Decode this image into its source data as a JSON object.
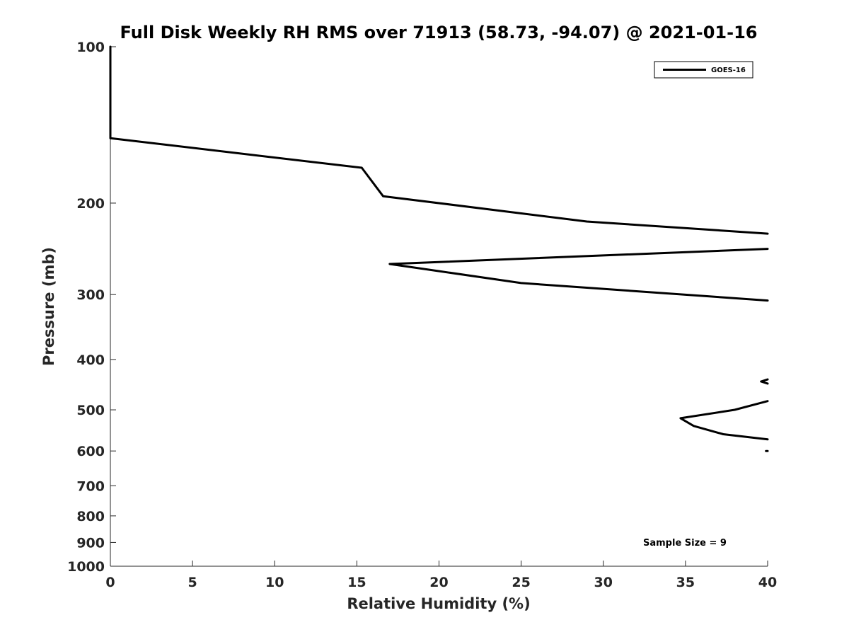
{
  "chart_data": {
    "type": "line",
    "title": "Full Disk Weekly RH RMS over 71913 (58.73, -94.07) @ 2021-01-16",
    "xlabel": "Relative Humidity (%)",
    "ylabel": "Pressure (mb)",
    "xlim": [
      0,
      40
    ],
    "ylim": [
      100,
      1000
    ],
    "y_scale": "log",
    "y_reversed": true,
    "grid": false,
    "legend_position": "top-right",
    "x_ticks": [
      "0",
      "5",
      "10",
      "15",
      "20",
      "25",
      "30",
      "35",
      "40"
    ],
    "y_ticks": [
      "100",
      "200",
      "300",
      "400",
      "500",
      "600",
      "700",
      "800",
      "900",
      "1000"
    ],
    "annotation": "Sample Size = 9",
    "series": [
      {
        "name": "GOES-16",
        "color": "#000000",
        "segments": [
          [
            [
              0,
              100
            ],
            [
              0,
              150
            ],
            [
              15.3,
              171
            ],
            [
              16.6,
              194
            ],
            [
              29,
              217
            ],
            [
              40,
              229
            ]
          ],
          [
            [
              40,
              245
            ],
            [
              17,
              262
            ],
            [
              25,
              285
            ],
            [
              40,
              308
            ]
          ],
          [
            [
              40,
              437
            ],
            [
              39.6,
              441
            ],
            [
              40,
              445
            ]
          ],
          [
            [
              40,
              481
            ],
            [
              38,
              500
            ],
            [
              34.7,
              519
            ],
            [
              35.5,
              537
            ],
            [
              37.3,
              557
            ],
            [
              40,
              570
            ]
          ],
          [
            [
              39.9,
              600
            ],
            [
              40,
              600
            ]
          ]
        ]
      }
    ]
  }
}
